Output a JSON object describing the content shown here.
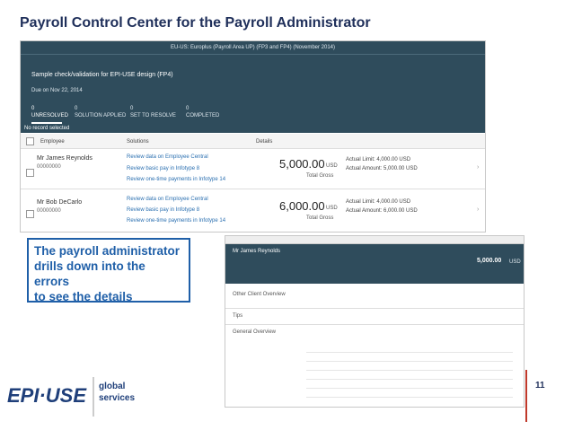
{
  "header": {
    "title": "Payroll Control Center for the Payroll Administrator"
  },
  "callout": {
    "lines": [
      "The payroll administrator",
      "drills down into the errors",
      "to see the details"
    ]
  },
  "footer": {
    "page_number": "11",
    "logo": {
      "brand": "EPI·USE",
      "tagline": [
        "global",
        "services"
      ]
    }
  },
  "main_screen": {
    "top_bar": "EU-US: Europlus (Payroll Area UP) (FP3 and FP4) (November 2014)",
    "check_title": "Sample check/validation for EPI-USE design (FP4)",
    "due": "Due on Nov 22, 2014",
    "statuses": [
      {
        "count": "0",
        "label": "UNRESOLVED"
      },
      {
        "count": "0",
        "label": "SOLUTION APPLIED"
      },
      {
        "count": "0",
        "label": "SET TO RESOLVE"
      },
      {
        "count": "0",
        "label": "COMPLETED"
      }
    ],
    "selection": "No record selected",
    "columns": [
      "Employee",
      "Solutions",
      "Details"
    ],
    "rows": [
      {
        "name": "Mr James Reynolds",
        "id": "00000000",
        "links": [
          "Review data on Employee Central",
          "Review basic pay in Infotype 8",
          "Review one-time payments in Infotype 14"
        ],
        "amount": "5,000.00",
        "currency": "USD",
        "amount_label": "Total Gross",
        "details": [
          "Actual Limit: 4,000.00 USD",
          "Actual Amount: 5,000.00 USD"
        ]
      },
      {
        "name": "Mr Bob DeCarlo",
        "id": "00000000",
        "links": [
          "Review data on Employee Central",
          "Review basic pay in Infotype 8",
          "Review one-time payments in Infotype 14"
        ],
        "amount": "6,000.00",
        "currency": "USD",
        "amount_label": "Total Gross",
        "details": [
          "Actual Limit: 4,000.00 USD",
          "Actual Amount: 6,000.00 USD"
        ]
      }
    ]
  },
  "detail_screen": {
    "employee": "Mr James Reynolds",
    "amount": "5,000.00",
    "currency": "USD",
    "sections": [
      "Other Client Overview",
      "Tips",
      "General Overview"
    ]
  }
}
